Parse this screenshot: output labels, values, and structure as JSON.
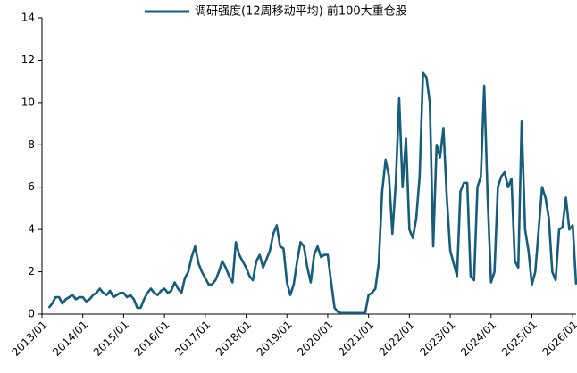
{
  "chart_data": {
    "type": "line",
    "x": [
      "2013/03",
      "2013/04",
      "2013/05",
      "2013/06",
      "2013/07",
      "2013/08",
      "2013/09",
      "2013/10",
      "2013/11",
      "2013/12",
      "2014/01",
      "2014/02",
      "2014/03",
      "2014/04",
      "2014/05",
      "2014/06",
      "2014/07",
      "2014/08",
      "2014/09",
      "2014/10",
      "2014/11",
      "2014/12",
      "2015/01",
      "2015/02",
      "2015/03",
      "2015/04",
      "2015/05",
      "2015/06",
      "2015/07",
      "2015/08",
      "2015/09",
      "2015/10",
      "2015/11",
      "2015/12",
      "2016/01",
      "2016/02",
      "2016/03",
      "2016/04",
      "2016/05",
      "2016/06",
      "2016/07",
      "2016/08",
      "2016/09",
      "2016/10",
      "2016/11",
      "2016/12",
      "2017/01",
      "2017/02",
      "2017/03",
      "2017/04",
      "2017/05",
      "2017/06",
      "2017/07",
      "2017/08",
      "2017/09",
      "2017/10",
      "2017/11",
      "2017/12",
      "2018/01",
      "2018/02",
      "2018/03",
      "2018/04",
      "2018/05",
      "2018/06",
      "2018/07",
      "2018/08",
      "2018/09",
      "2018/10",
      "2018/11",
      "2018/12",
      "2019/01",
      "2019/02",
      "2019/03",
      "2019/04",
      "2019/05",
      "2019/06",
      "2019/07",
      "2019/08",
      "2019/09",
      "2019/10",
      "2019/11",
      "2019/12",
      "2020/01",
      "2020/02",
      "2020/03",
      "2020/04",
      "2020/05",
      "2020/06",
      "2020/07",
      "2020/08",
      "2020/09",
      "2020/10",
      "2020/11",
      "2020/12",
      "2021/01",
      "2021/02",
      "2021/03",
      "2021/04",
      "2021/05",
      "2021/06",
      "2021/07",
      "2021/08",
      "2021/09",
      "2021/10",
      "2021/11",
      "2021/12",
      "2022/01",
      "2022/02",
      "2022/03",
      "2022/04",
      "2022/05",
      "2022/06",
      "2022/07",
      "2022/08",
      "2022/09",
      "2022/10",
      "2022/11",
      "2022/12",
      "2023/01",
      "2023/02",
      "2023/03",
      "2023/04",
      "2023/05",
      "2023/06",
      "2023/07",
      "2023/08",
      "2023/09",
      "2023/10",
      "2023/11",
      "2023/12",
      "2024/01",
      "2024/02",
      "2024/03",
      "2024/04",
      "2024/05",
      "2024/06",
      "2024/07",
      "2024/08",
      "2024/09",
      "2024/10",
      "2024/11",
      "2024/12",
      "2025/01",
      "2025/02",
      "2025/03",
      "2025/04",
      "2025/05",
      "2025/06",
      "2025/07",
      "2025/08",
      "2025/09",
      "2025/10",
      "2025/11",
      "2025/12",
      "2026/01",
      "2026/02"
    ],
    "series": [
      {
        "name": "调研强度(12周移动平均) 前100大重仓股",
        "color": "#165d7c",
        "values": [
          0.3,
          0.5,
          0.8,
          0.8,
          0.5,
          0.7,
          0.8,
          0.9,
          0.7,
          0.8,
          0.8,
          0.6,
          0.7,
          0.9,
          1.0,
          1.2,
          1.0,
          0.9,
          1.1,
          0.8,
          0.9,
          1.0,
          1.0,
          0.8,
          0.9,
          0.7,
          0.3,
          0.3,
          0.7,
          1.0,
          1.2,
          1.0,
          0.9,
          1.1,
          1.2,
          1.0,
          1.1,
          1.5,
          1.2,
          1.0,
          1.7,
          2.0,
          2.7,
          3.2,
          2.4,
          2.0,
          1.7,
          1.4,
          1.4,
          1.6,
          2.0,
          2.5,
          2.2,
          1.8,
          1.5,
          3.4,
          2.8,
          2.5,
          2.2,
          1.8,
          1.6,
          2.5,
          2.8,
          2.2,
          2.6,
          3.0,
          3.8,
          4.2,
          3.2,
          3.1,
          1.5,
          0.9,
          1.4,
          2.5,
          3.4,
          3.2,
          2.2,
          1.5,
          2.8,
          3.2,
          2.7,
          2.8,
          2.8,
          1.5,
          0.3,
          0.1,
          0.05,
          0.05,
          0.05,
          0.05,
          0.05,
          0.05,
          0.05,
          0.05,
          0.9,
          1.0,
          1.2,
          2.4,
          5.8,
          7.3,
          6.5,
          3.8,
          6.2,
          10.2,
          6.0,
          8.3,
          4.0,
          3.6,
          4.5,
          6.5,
          11.4,
          11.2,
          10.0,
          3.2,
          8.0,
          7.4,
          8.8,
          5.5,
          3.0,
          2.4,
          1.8,
          5.8,
          6.2,
          6.2,
          1.8,
          1.6,
          6.0,
          6.5,
          10.8,
          5.5,
          1.5,
          2.0,
          6.0,
          6.5,
          6.7,
          6.0,
          6.4,
          2.5,
          2.2,
          9.1,
          4.0,
          3.0,
          1.4,
          2.0,
          4.0,
          6.0,
          5.5,
          4.5,
          2.0,
          1.6,
          4.0,
          4.1,
          5.5,
          4.0,
          4.2,
          1.4
        ]
      }
    ],
    "xlim": [
      "2013/01",
      "2026/02"
    ],
    "xticks": [
      "2013/01",
      "2014/01",
      "2015/01",
      "2016/01",
      "2017/01",
      "2018/01",
      "2019/01",
      "2020/01",
      "2021/01",
      "2022/01",
      "2023/01",
      "2024/01",
      "2025/01",
      "2026/01"
    ],
    "ylim": [
      0,
      14
    ],
    "yticks": [
      0,
      2,
      4,
      6,
      8,
      10,
      12,
      14
    ],
    "grid": false,
    "legend": "top"
  }
}
